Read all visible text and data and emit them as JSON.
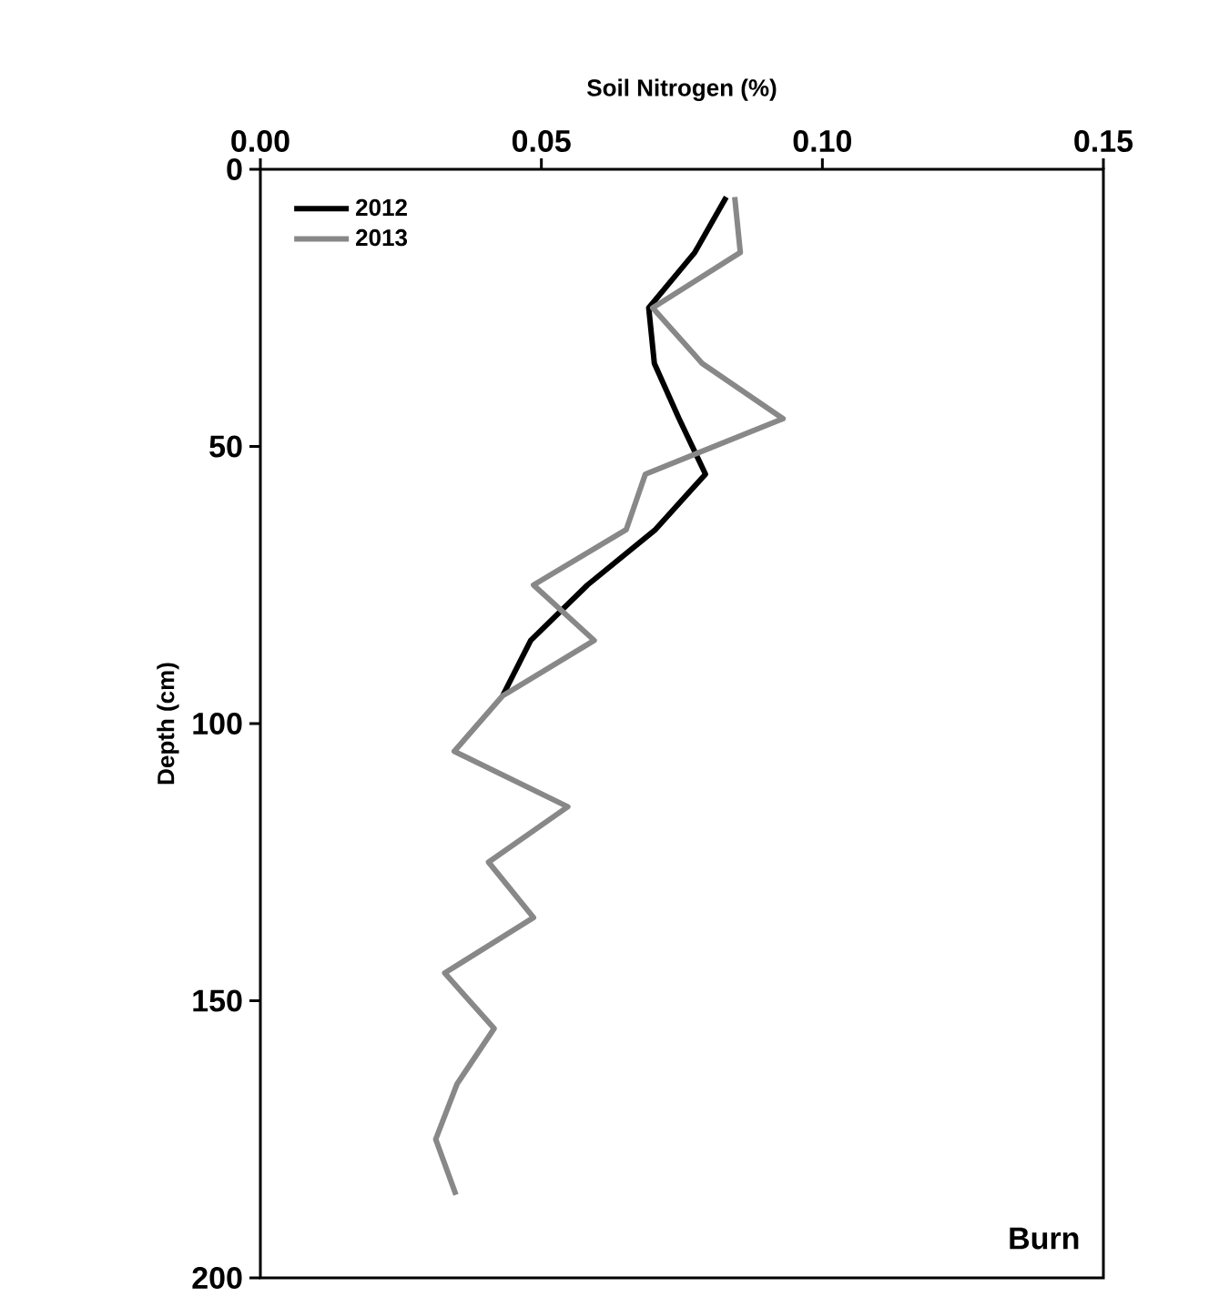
{
  "chart_data": {
    "type": "line",
    "xlabel": "Soil Nitrogen (%)",
    "ylabel": "Depth (cm)",
    "xlim": [
      0,
      0.15
    ],
    "xticks": [
      {
        "value": 0,
        "label": "0.00"
      },
      {
        "value": 0.05,
        "label": "0.05"
      },
      {
        "value": 0.1,
        "label": "0.10"
      },
      {
        "value": 0.15,
        "label": "0.15"
      }
    ],
    "ylim": [
      200,
      0
    ],
    "yticks": [
      0,
      50,
      100,
      150,
      200
    ],
    "legend": "top left",
    "grid": false,
    "marker": "none",
    "line_style": "solid",
    "annotations": [
      "Burn"
    ],
    "series": [
      {
        "name": "2012",
        "color": "#000000",
        "x": [
          0.0829,
          0.0773,
          0.0691,
          0.0701,
          0.0745,
          0.0792,
          0.0703,
          0.0582,
          0.0481,
          0.0431
        ],
        "values": [
          5,
          15,
          25,
          35,
          45,
          55,
          65,
          75,
          85,
          95
        ]
      },
      {
        "name": "2013",
        "color": "#888888",
        "x": [
          0.0844,
          0.0854,
          0.0698,
          0.0786,
          0.093,
          0.0685,
          0.0651,
          0.0486,
          0.0594,
          0.0431,
          0.0345,
          0.0547,
          0.0406,
          0.0486,
          0.0328,
          0.0416,
          0.035,
          0.0312,
          0.0348
        ],
        "values": [
          5,
          15,
          25,
          35,
          45,
          55,
          65,
          75,
          85,
          95,
          105,
          115,
          125,
          135,
          145,
          155,
          165,
          175,
          185
        ]
      }
    ]
  }
}
